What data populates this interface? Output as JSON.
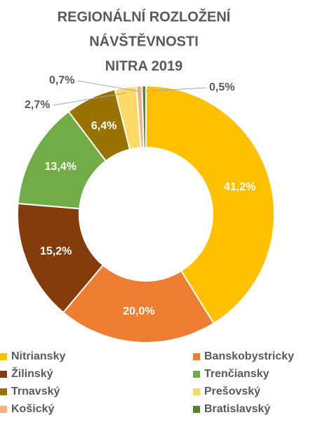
{
  "chart_data": {
    "type": "donut",
    "title": [
      "REGIONÁLNÍ ROZLOŽENÍ",
      "NÁVŠTĚVNOSTI",
      "NITRA 2019"
    ],
    "categories": [
      "Nitriansky",
      "Banskobystricky",
      "Žilinský",
      "Trenčiansky",
      "Trnavský",
      "Prešovský",
      "Košický",
      "Bratislavský"
    ],
    "values": [
      41.2,
      20.0,
      15.2,
      13.4,
      6.4,
      2.7,
      0.7,
      0.5
    ],
    "value_labels": [
      "41,2%",
      "20,0%",
      "15,2%",
      "13,4%",
      "6,4%",
      "2,7%",
      "0,7%",
      "0,5%"
    ],
    "colors": [
      "#FFC000",
      "#ED7D31",
      "#843C0C",
      "#70AD47",
      "#997300",
      "#FFD966",
      "#F4B183",
      "#548235"
    ],
    "legend": "bottom"
  }
}
